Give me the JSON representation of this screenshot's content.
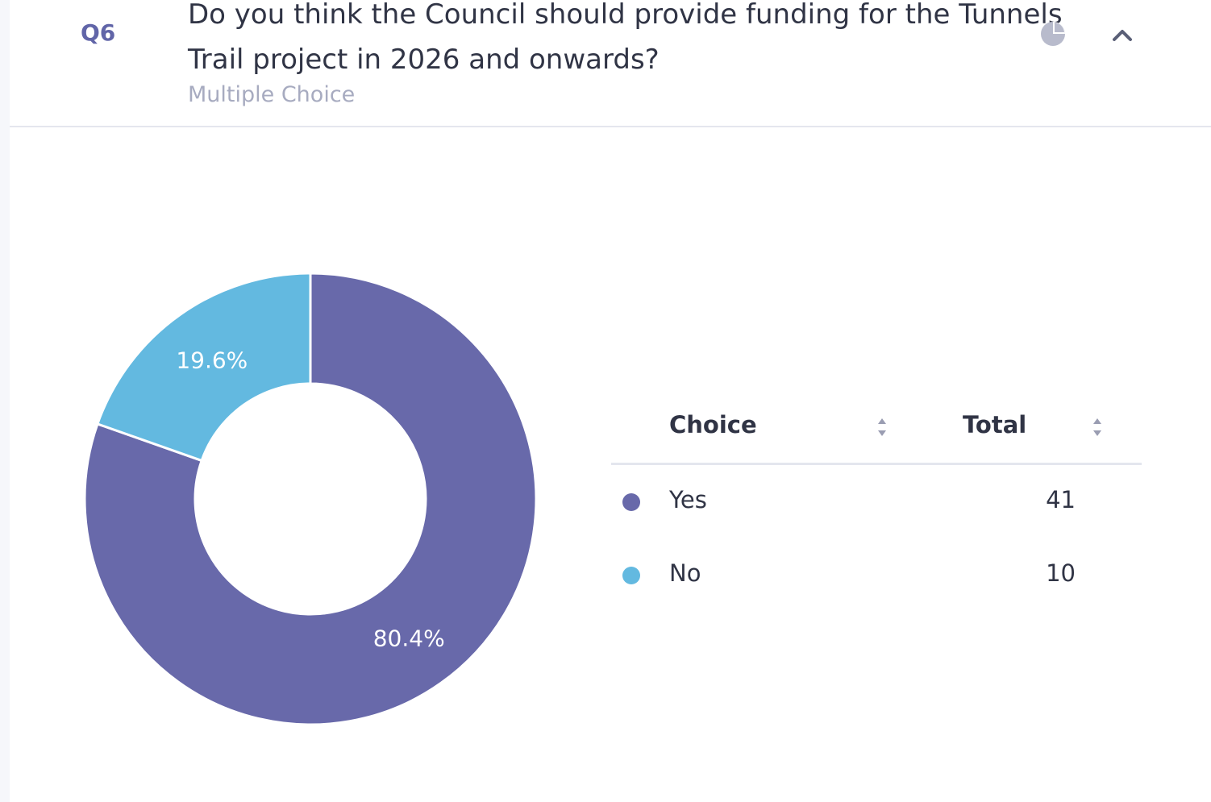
{
  "question": {
    "number": "Q6",
    "title": "Do you think the Council should provide funding for the Tunnels Trail project in 2026 and onwards?",
    "type": "Multiple Choice"
  },
  "icons": {
    "chart_toggle": "pie-chart-icon",
    "collapse": "chevron-up-icon",
    "sort": "sort-icon"
  },
  "table": {
    "headers": {
      "choice": "Choice",
      "total": "Total"
    },
    "rows": [
      {
        "choice": "Yes",
        "total": "41",
        "color": "#6869aa"
      },
      {
        "choice": "No",
        "total": "10",
        "color": "#63b9e0"
      }
    ]
  },
  "chart_data": {
    "type": "pie",
    "categories": [
      "Yes",
      "No"
    ],
    "values": [
      41,
      10
    ],
    "labels": [
      "80.4%",
      "19.6%"
    ],
    "colors": [
      "#6869aa",
      "#63b9e0"
    ],
    "donut": true
  }
}
